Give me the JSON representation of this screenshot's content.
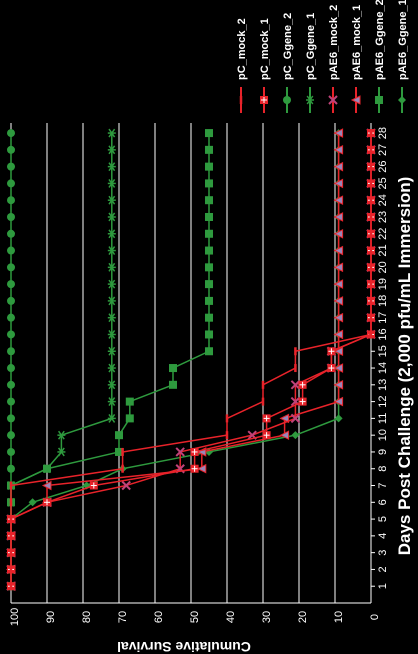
{
  "chart_data": {
    "type": "line",
    "orientation": "rotated-90-clockwise",
    "xlabel": "Days Post Challenge (2,000 pfu/mL Immersion)",
    "ylabel": "Cumulative Survival",
    "x": [
      1,
      2,
      3,
      4,
      5,
      6,
      7,
      8,
      9,
      10,
      11,
      12,
      13,
      14,
      15,
      16,
      17,
      18,
      19,
      20,
      21,
      22,
      23,
      24,
      25,
      26,
      27,
      28
    ],
    "xlim": [
      0,
      28.6
    ],
    "ylim": [
      0,
      100
    ],
    "yticks": [
      0,
      10,
      20,
      30,
      40,
      50,
      60,
      70,
      80,
      90,
      100
    ],
    "grid": true,
    "legend_position": "right",
    "series": [
      {
        "name": "pAE6_Ggene_1",
        "color": "#2e9a3e",
        "marker": "diamond",
        "values": [
          100,
          100,
          100,
          100,
          100,
          94,
          79,
          69,
          45,
          21,
          9,
          9,
          9,
          9,
          9,
          9,
          9,
          9,
          9,
          9,
          9,
          9,
          9,
          9,
          9,
          9,
          9,
          9
        ]
      },
      {
        "name": "pAE6_Ggene_2",
        "color": "#2e9a3e",
        "marker": "square",
        "values": [
          100,
          100,
          100,
          100,
          100,
          100,
          100,
          90,
          70,
          70,
          67,
          67,
          55,
          55,
          45,
          45,
          45,
          45,
          45,
          45,
          45,
          45,
          45,
          45,
          45,
          45,
          45,
          45
        ]
      },
      {
        "name": "pAE6_mock_1",
        "color": "#e8232a",
        "marker": "triangle",
        "values": [
          100,
          100,
          100,
          100,
          100,
          90,
          90,
          47,
          47,
          24,
          24,
          9,
          9,
          9,
          9,
          9,
          9,
          9,
          9,
          9,
          9,
          9,
          9,
          9,
          9,
          9,
          9,
          9
        ]
      },
      {
        "name": "pAE6_mock_2",
        "color": "#e8232a",
        "marker": "x",
        "values": [
          100,
          100,
          100,
          100,
          100,
          90,
          68,
          53,
          53,
          33,
          21,
          21,
          21,
          11,
          11,
          0,
          0,
          0,
          0,
          0,
          0,
          0,
          0,
          0,
          0,
          0,
          0,
          0
        ]
      },
      {
        "name": "pC_Ggene_1",
        "color": "#2e9a3e",
        "marker": "star",
        "values": [
          100,
          100,
          100,
          100,
          100,
          100,
          100,
          90,
          86,
          86,
          72,
          72,
          72,
          72,
          72,
          72,
          72,
          72,
          72,
          72,
          72,
          72,
          72,
          72,
          72,
          72,
          72,
          72
        ]
      },
      {
        "name": "pC_Ggene_2",
        "color": "#2e9a3e",
        "marker": "circle",
        "values": [
          100,
          100,
          100,
          100,
          100,
          100,
          100,
          100,
          100,
          100,
          100,
          100,
          100,
          100,
          100,
          100,
          100,
          100,
          100,
          100,
          100,
          100,
          100,
          100,
          100,
          100,
          100,
          100
        ]
      },
      {
        "name": "pC_mock_1",
        "color": "#e8232a",
        "marker": "plus-square",
        "values": [
          100,
          100,
          100,
          100,
          100,
          90,
          77,
          49,
          49,
          29,
          29,
          19,
          19,
          11,
          11,
          0,
          0,
          0,
          0,
          0,
          0,
          0,
          0,
          0,
          0,
          0,
          0,
          0
        ]
      },
      {
        "name": "pC_mock_2",
        "color": "#e8232a",
        "marker": "dash",
        "values": [
          100,
          100,
          100,
          100,
          100,
          100,
          100,
          69,
          69,
          40,
          40,
          30,
          30,
          21,
          21,
          0,
          0,
          0,
          0,
          0,
          0,
          0,
          0,
          0,
          0,
          0,
          0,
          0
        ]
      }
    ]
  },
  "colors": {
    "background": "#000000",
    "text": "#ffffff",
    "grid": "#ffffff"
  }
}
